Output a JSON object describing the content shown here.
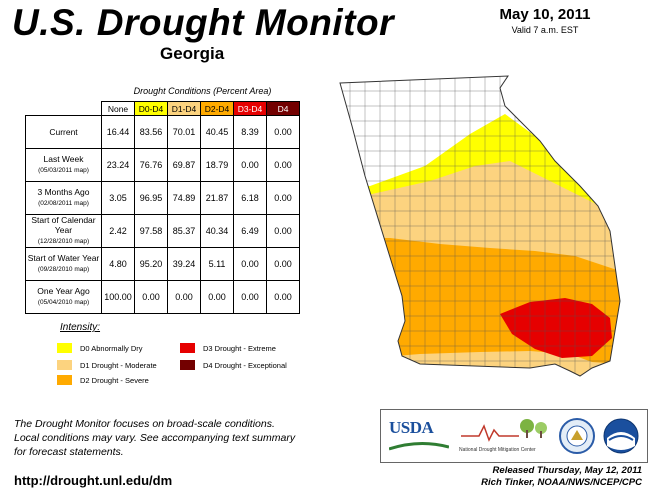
{
  "header": {
    "title": "U.S. Drought Monitor",
    "state": "Georgia",
    "date": "May 10, 2011",
    "valid": "Valid 7 a.m. EST"
  },
  "table": {
    "caption": "Drought Conditions (Percent Area)",
    "columns": [
      "None",
      "D0-D4",
      "D1-D4",
      "D2-D4",
      "D3-D4",
      "D4"
    ],
    "rows": [
      {
        "label": "Current",
        "sub": "",
        "values": [
          "16.44",
          "83.56",
          "70.01",
          "40.45",
          "8.39",
          "0.00"
        ]
      },
      {
        "label": "Last Week",
        "sub": "(05/03/2011 map)",
        "values": [
          "23.24",
          "76.76",
          "69.87",
          "18.79",
          "0.00",
          "0.00"
        ]
      },
      {
        "label": "3 Months Ago",
        "sub": "(02/08/2011 map)",
        "values": [
          "3.05",
          "96.95",
          "74.89",
          "21.87",
          "6.18",
          "0.00"
        ]
      },
      {
        "label": "Start of Calendar Year",
        "sub": "(12/28/2010 map)",
        "values": [
          "2.42",
          "97.58",
          "85.37",
          "40.34",
          "6.49",
          "0.00"
        ]
      },
      {
        "label": "Start of Water Year",
        "sub": "(09/28/2010 map)",
        "values": [
          "4.80",
          "95.20",
          "39.24",
          "5.11",
          "0.00",
          "0.00"
        ]
      },
      {
        "label": "One Year Ago",
        "sub": "(05/04/2010 map)",
        "values": [
          "100.00",
          "0.00",
          "0.00",
          "0.00",
          "0.00",
          "0.00"
        ]
      }
    ]
  },
  "legend": {
    "title": "Intensity:",
    "items": [
      {
        "label": "D0 Abnormally Dry",
        "color": "#ffff00"
      },
      {
        "label": "D1 Drought - Moderate",
        "color": "#fcd37f"
      },
      {
        "label": "D2 Drought - Severe",
        "color": "#ffaa00"
      },
      {
        "label": "D3 Drought - Extreme",
        "color": "#e60000"
      },
      {
        "label": "D4 Drought - Exceptional",
        "color": "#730000"
      }
    ]
  },
  "note": {
    "line1": "The Drought Monitor focuses on broad-scale conditions.",
    "line2": "Local conditions may vary. See accompanying text summary",
    "line3": "for forecast statements."
  },
  "url": "http://drought.unl.edu/dm",
  "released": {
    "line1": "Released Thursday, May 12, 2011",
    "line2": "Rich Tinker, NOAA/NWS/NCEP/CPC"
  },
  "logos": {
    "usda": "USDA",
    "ndmc": "National Drought Mitigation Center"
  }
}
